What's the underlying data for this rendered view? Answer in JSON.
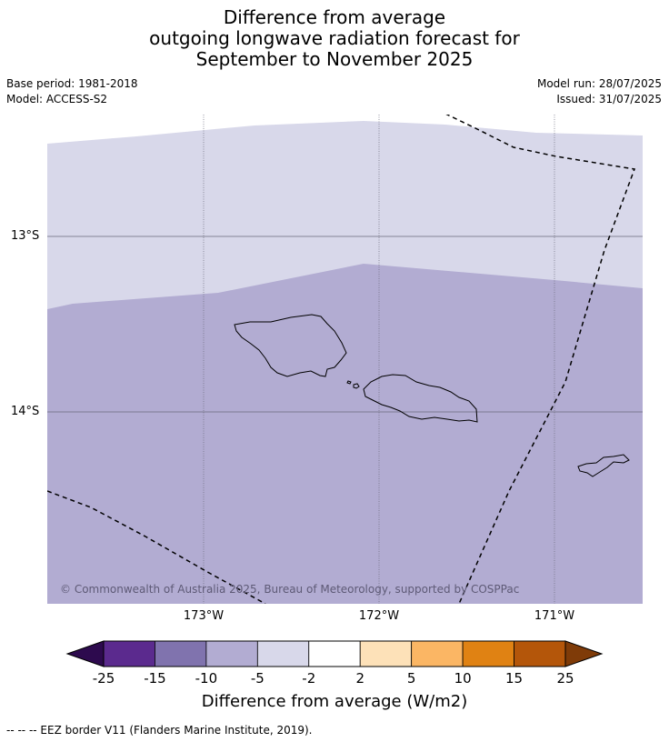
{
  "title": {
    "line1": "Difference from average",
    "line2": "outgoing longwave radiation forecast for",
    "line3": "September to November 2025"
  },
  "meta": {
    "base_period": "Base period: 1981-2018",
    "model": "Model: ACCESS-S2",
    "model_run": "Model run: 28/07/2025",
    "issued": "Issued: 31/07/2025"
  },
  "map": {
    "lat_labels": [
      "13°S",
      "14°S"
    ],
    "lon_labels": [
      "173°W",
      "172°W",
      "171°W"
    ],
    "copyright": "© Commonwealth of Australia 2025, Bureau of Meteorology, supported by COSPPac",
    "region_colors": {
      "upper": "#d8d8ea",
      "lower": "#b2acd2"
    }
  },
  "colorbar": {
    "title": "Difference from average (W/m2)",
    "ticks": [
      "-25",
      "-15",
      "-10",
      "-5",
      "-2",
      "2",
      "5",
      "10",
      "15",
      "25"
    ],
    "colors": [
      "#5b2a8e",
      "#8073ae",
      "#b2acd2",
      "#d8d8ea",
      "#ffffff",
      "#fde1b8",
      "#fbb664",
      "#e08213",
      "#b4560a"
    ],
    "low_extend_color": "#2d0a4e",
    "high_extend_color": "#7f3b08"
  },
  "footnote": "--  --  -- EEZ border V11 (Flanders Marine Institute, 2019)."
}
